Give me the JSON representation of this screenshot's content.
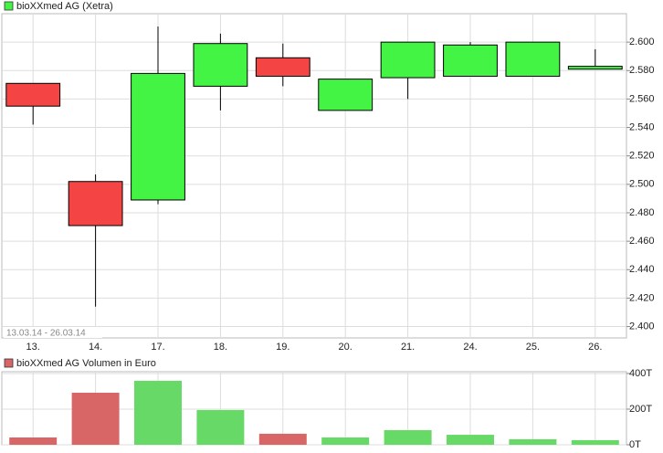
{
  "chart_data": [
    {
      "type": "candlestick",
      "legend": "bioXXmed AG (Xetra)",
      "legend_color": "#44f444",
      "annotation": "13.03.14 - 26.03.14",
      "categories": [
        "13.",
        "14.",
        "17.",
        "18.",
        "19.",
        "20.",
        "21.",
        "24.",
        "25.",
        "26."
      ],
      "open": [
        2.571,
        2.502,
        2.489,
        2.569,
        2.589,
        2.552,
        2.575,
        2.576,
        2.576,
        2.581
      ],
      "high": [
        2.571,
        2.507,
        2.611,
        2.606,
        2.599,
        2.574,
        2.6,
        2.6,
        2.6,
        2.595
      ],
      "low": [
        2.542,
        2.414,
        2.486,
        2.552,
        2.569,
        2.552,
        2.56,
        2.576,
        2.576,
        2.581
      ],
      "close": [
        2.555,
        2.471,
        2.578,
        2.599,
        2.576,
        2.574,
        2.6,
        2.598,
        2.6,
        2.583
      ],
      "up_color": "#44f444",
      "down_color": "#f44444",
      "ylim": [
        2.392,
        2.62
      ],
      "yticks": [
        {
          "value": 2.4,
          "label": "2.400"
        },
        {
          "value": 2.42,
          "label": "2.420"
        },
        {
          "value": 2.44,
          "label": "2.440"
        },
        {
          "value": 2.46,
          "label": "2.460"
        },
        {
          "value": 2.48,
          "label": "2.480"
        },
        {
          "value": 2.5,
          "label": "2.500"
        },
        {
          "value": 2.52,
          "label": "2.520"
        },
        {
          "value": 2.54,
          "label": "2.540"
        },
        {
          "value": 2.56,
          "label": "2.560"
        },
        {
          "value": 2.58,
          "label": "2.580"
        },
        {
          "value": 2.6,
          "label": "2.600"
        }
      ],
      "grid": true
    },
    {
      "type": "bar",
      "legend": "bioXXmed AG Volumen in Euro",
      "legend_color": "#d96666",
      "values": [
        41000,
        292000,
        359000,
        195000,
        62000,
        41000,
        82000,
        56000,
        31000,
        26000
      ],
      "up_color": "#66d966",
      "down_color": "#d96666",
      "ylim": [
        0,
        410000
      ],
      "yticks": [
        {
          "value": 0,
          "label": "0T"
        },
        {
          "value": 200000,
          "label": "200T"
        },
        {
          "value": 400000,
          "label": "400T"
        }
      ],
      "grid": true
    }
  ]
}
